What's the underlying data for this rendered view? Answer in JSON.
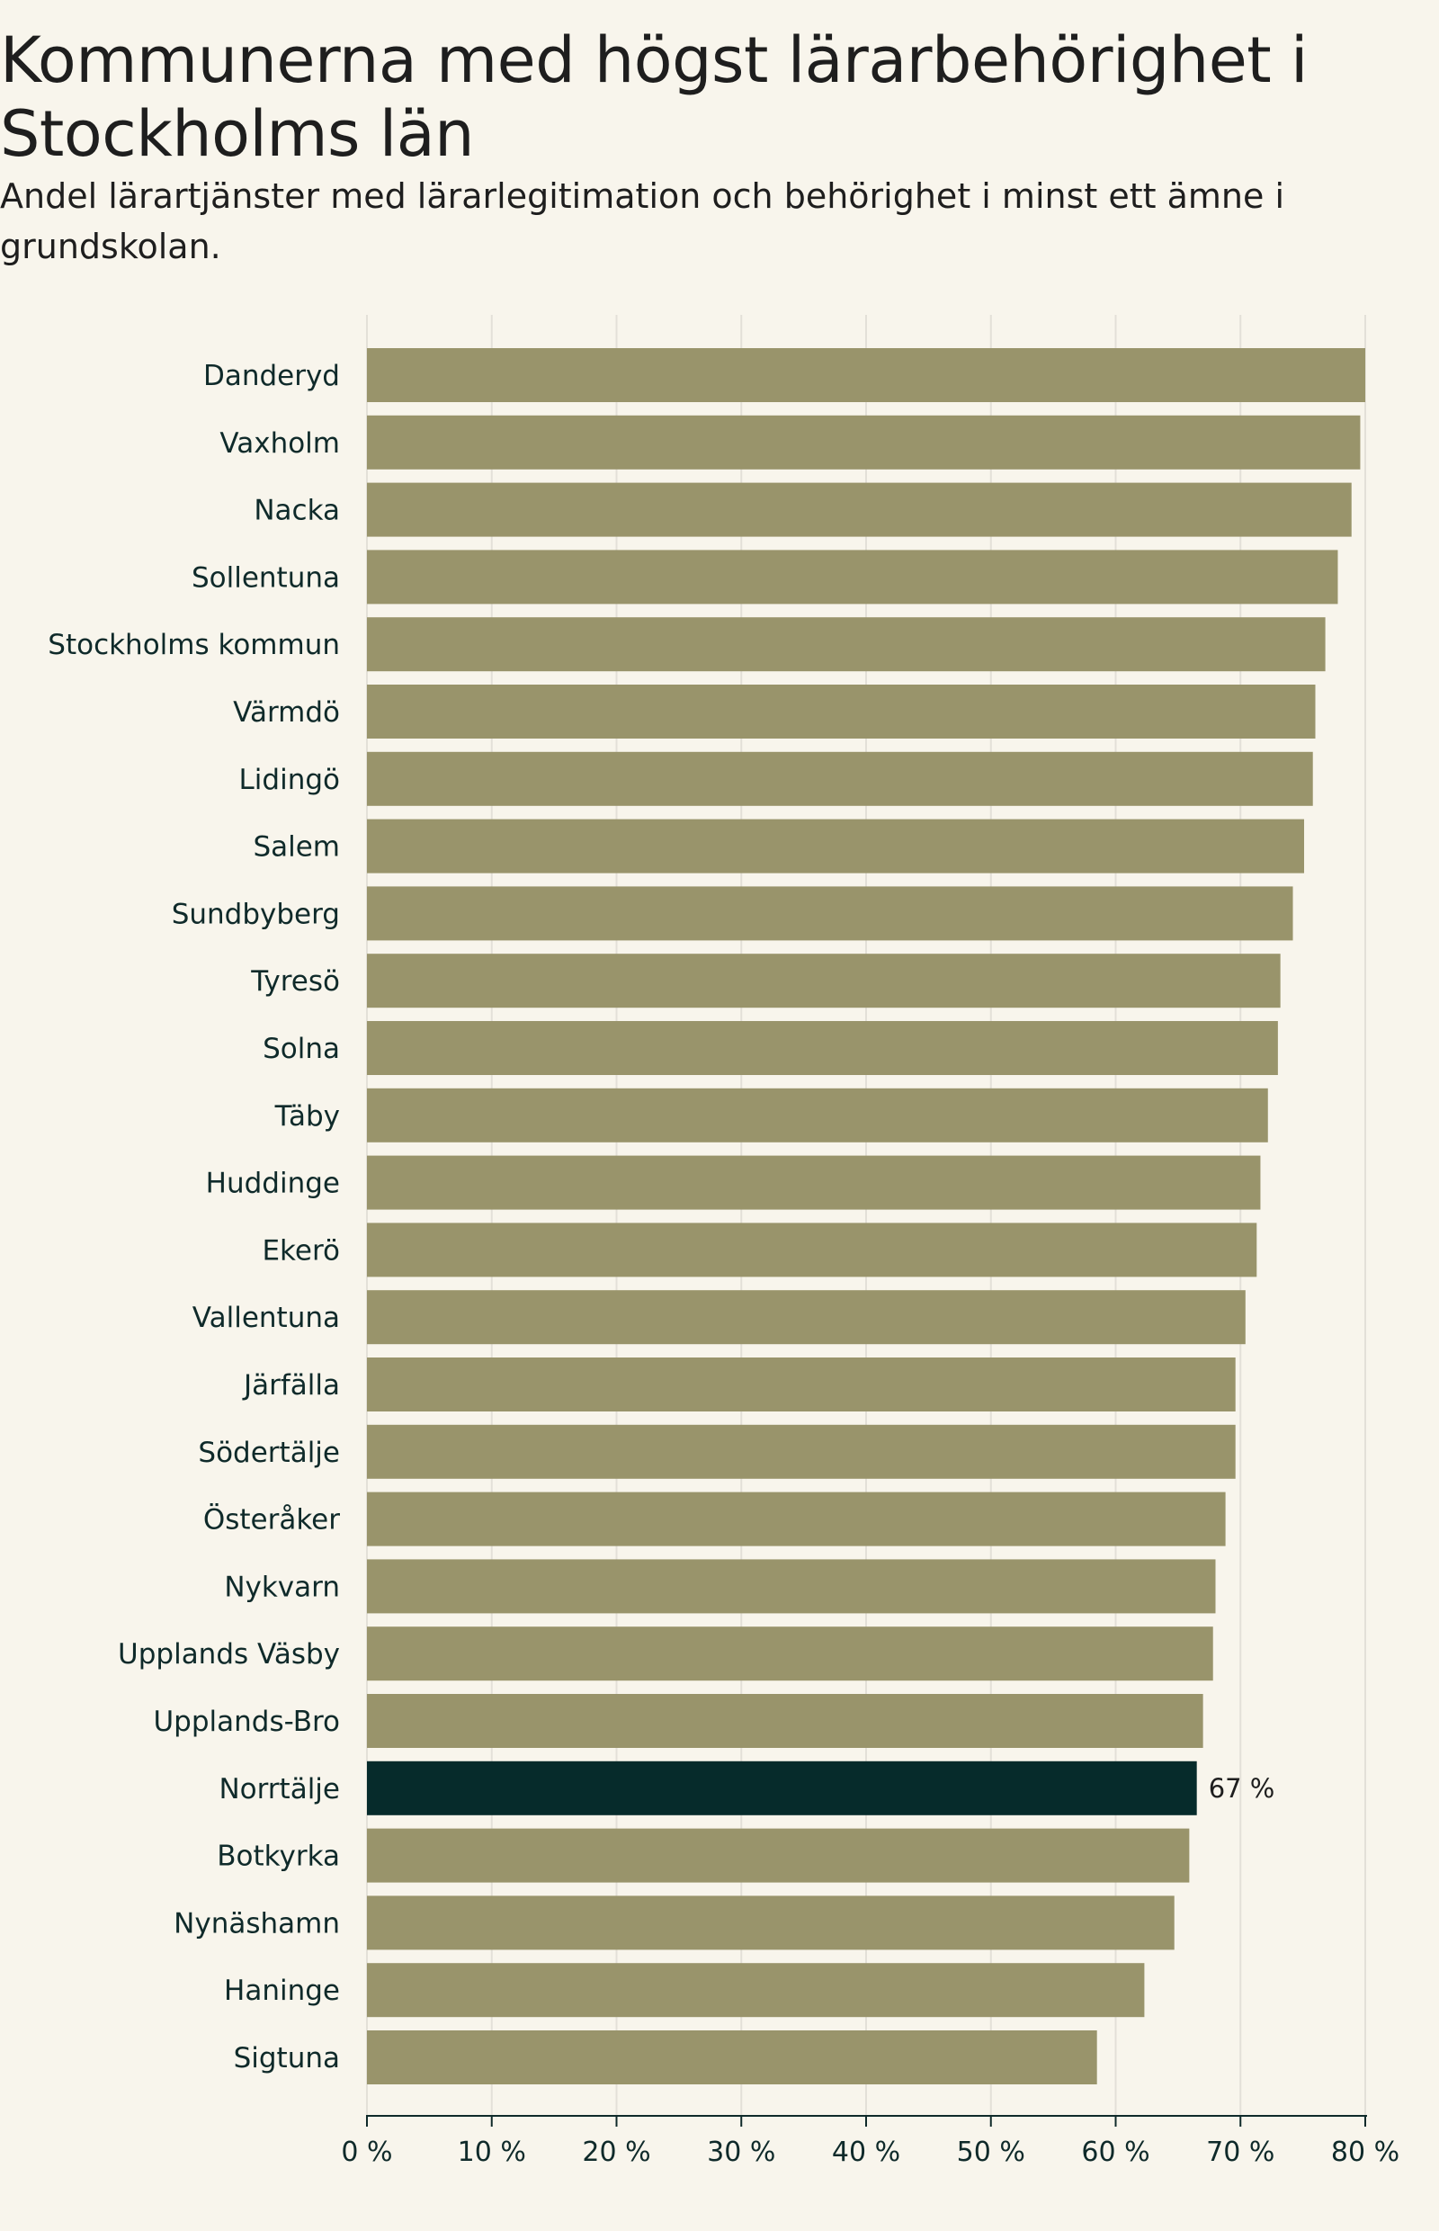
{
  "colors": {
    "background": "#f8f5ec",
    "bar": "#99946b",
    "highlight": "#062b2b",
    "grid": "#e3e0d8",
    "axis": "#0f2a2a"
  },
  "chart_data": {
    "type": "bar",
    "orientation": "horizontal",
    "title": "Kommunerna med högst lärarbehörighet i Stockholms län",
    "subtitle": "Andel lärartjänster med lärarlegitimation och behörighet i minst ett ämne i grundskolan.",
    "categories": [
      "Danderyd",
      "Vaxholm",
      "Nacka",
      "Sollentuna",
      "Stockholms kommun",
      "Värmdö",
      "Lidingö",
      "Salem",
      "Sundbyberg",
      "Tyresö",
      "Solna",
      "Täby",
      "Huddinge",
      "Ekerö",
      "Vallentuna",
      "Järfälla",
      "Södertälje",
      "Österåker",
      "Nykvarn",
      "Upplands Väsby",
      "Upplands-Bro",
      "Norrtälje",
      "Botkyrka",
      "Nynäshamn",
      "Haninge",
      "Sigtuna"
    ],
    "values": [
      80.0,
      79.6,
      78.9,
      77.8,
      76.8,
      76.0,
      75.8,
      75.1,
      74.2,
      73.2,
      73.0,
      72.2,
      71.6,
      71.3,
      70.4,
      69.6,
      69.6,
      68.8,
      68.0,
      67.8,
      67.0,
      66.5,
      65.9,
      64.7,
      62.3,
      58.5
    ],
    "highlight": {
      "category": "Norrtälje",
      "label": "67 %"
    },
    "xlim": [
      0,
      80
    ],
    "xticks": [
      0,
      10,
      20,
      30,
      40,
      50,
      60,
      70,
      80
    ],
    "xtick_labels": [
      "0 %",
      "10 %",
      "20 %",
      "30 %",
      "40 %",
      "50 %",
      "60 %",
      "70 %",
      "80 %"
    ],
    "xlabel": "",
    "ylabel": "",
    "grid": true
  }
}
